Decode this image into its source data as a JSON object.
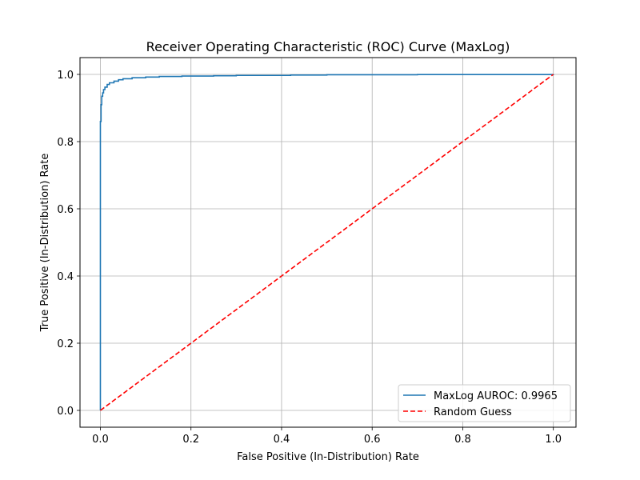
{
  "chart_data": {
    "type": "line",
    "title": "Receiver Operating Characteristic (ROC) Curve (MaxLog)",
    "xlabel": "False Positive (In-Distribution) Rate",
    "ylabel": "True Positive (In-Distribution) Rate",
    "xlim": [
      -0.045,
      1.05
    ],
    "ylim": [
      -0.05,
      1.05
    ],
    "xticks": [
      0.0,
      0.2,
      0.4,
      0.6,
      0.8,
      1.0
    ],
    "yticks": [
      0.0,
      0.2,
      0.4,
      0.6,
      0.8,
      1.0
    ],
    "xtick_labels": [
      "0.0",
      "0.2",
      "0.4",
      "0.6",
      "0.8",
      "1.0"
    ],
    "ytick_labels": [
      "0.0",
      "0.2",
      "0.4",
      "0.6",
      "0.8",
      "1.0"
    ],
    "grid": true,
    "legend_position": "bottom-right",
    "series": [
      {
        "name": "MaxLog AUROC: 0.9965",
        "color": "#1f77b4",
        "style": "solid",
        "x": [
          0.0,
          0.0,
          0.0015,
          0.0015,
          0.003,
          0.003,
          0.005,
          0.007,
          0.01,
          0.015,
          0.02,
          0.03,
          0.04,
          0.05,
          0.07,
          0.1,
          0.13,
          0.18,
          0.25,
          0.3,
          0.42,
          0.5,
          0.7,
          1.0
        ],
        "y": [
          0.0,
          0.86,
          0.88,
          0.91,
          0.92,
          0.935,
          0.945,
          0.955,
          0.962,
          0.97,
          0.975,
          0.98,
          0.984,
          0.987,
          0.99,
          0.992,
          0.994,
          0.995,
          0.996,
          0.997,
          0.998,
          0.999,
          0.9995,
          1.0
        ]
      },
      {
        "name": "Random Guess",
        "color": "#ff0000",
        "style": "dashed",
        "x": [
          0.0,
          1.0
        ],
        "y": [
          0.0,
          1.0
        ]
      }
    ]
  }
}
